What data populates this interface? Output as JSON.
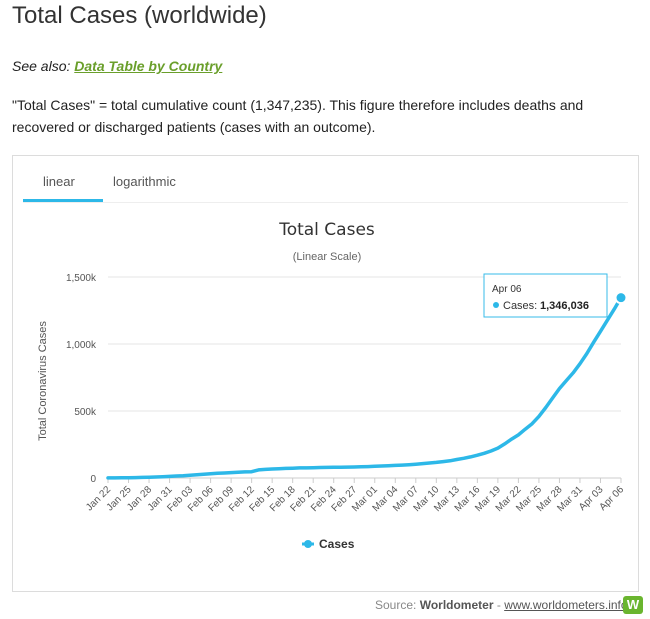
{
  "page_title": "Total Cases (worldwide)",
  "see_also_label": "See also:",
  "see_also_link": "Data Table by Country",
  "description": "\"Total Cases\" = total cumulative count (1,347,235). This figure therefore includes deaths and recovered or discharged patients (cases with an outcome).",
  "tabs": [
    {
      "label": "linear",
      "active": true
    },
    {
      "label": "logarithmic",
      "active": false
    }
  ],
  "tooltip": {
    "date": "Apr 06",
    "series_label": "Cases:",
    "value": "1,346,036"
  },
  "footer": {
    "source_label": "Source:",
    "source_name": "Worldometer",
    "separator": "-",
    "url": "www.worldometers.info",
    "logo_glyph": "W"
  },
  "colors": {
    "series": "#2db8e8",
    "link": "#6a9f2b",
    "logo": "#6ab52f"
  },
  "chart_data": {
    "type": "line",
    "title": "Total Cases",
    "subtitle": "(Linear Scale)",
    "ylabel": "Total Coronavirus Cases",
    "xlabel": "",
    "ylim": [
      0,
      1500000
    ],
    "y_ticks": [
      0,
      500000,
      1000000,
      1500000
    ],
    "y_tick_labels": [
      "0",
      "500k",
      "1,000k",
      "1,500k"
    ],
    "x_tick_labels": [
      "Jan 22",
      "Jan 25",
      "Jan 28",
      "Jan 31",
      "Feb 03",
      "Feb 06",
      "Feb 09",
      "Feb 12",
      "Feb 15",
      "Feb 18",
      "Feb 21",
      "Feb 24",
      "Feb 27",
      "Mar 01",
      "Mar 04",
      "Mar 07",
      "Mar 10",
      "Mar 13",
      "Mar 16",
      "Mar 19",
      "Mar 22",
      "Mar 25",
      "Mar 28",
      "Mar 31",
      "Apr 03",
      "Apr 06"
    ],
    "x": [
      "Jan 22",
      "Jan 23",
      "Jan 24",
      "Jan 25",
      "Jan 26",
      "Jan 27",
      "Jan 28",
      "Jan 29",
      "Jan 30",
      "Jan 31",
      "Feb 01",
      "Feb 02",
      "Feb 03",
      "Feb 04",
      "Feb 05",
      "Feb 06",
      "Feb 07",
      "Feb 08",
      "Feb 09",
      "Feb 10",
      "Feb 11",
      "Feb 12",
      "Feb 13",
      "Feb 14",
      "Feb 15",
      "Feb 16",
      "Feb 17",
      "Feb 18",
      "Feb 19",
      "Feb 20",
      "Feb 21",
      "Feb 22",
      "Feb 23",
      "Feb 24",
      "Feb 25",
      "Feb 26",
      "Feb 27",
      "Feb 28",
      "Feb 29",
      "Mar 01",
      "Mar 02",
      "Mar 03",
      "Mar 04",
      "Mar 05",
      "Mar 06",
      "Mar 07",
      "Mar 08",
      "Mar 09",
      "Mar 10",
      "Mar 11",
      "Mar 12",
      "Mar 13",
      "Mar 14",
      "Mar 15",
      "Mar 16",
      "Mar 17",
      "Mar 18",
      "Mar 19",
      "Mar 20",
      "Mar 21",
      "Mar 22",
      "Mar 23",
      "Mar 24",
      "Mar 25",
      "Mar 26",
      "Mar 27",
      "Mar 28",
      "Mar 29",
      "Mar 30",
      "Mar 31",
      "Apr 01",
      "Apr 02",
      "Apr 03",
      "Apr 04",
      "Apr 05",
      "Apr 06"
    ],
    "series": [
      {
        "name": "Cases",
        "values": [
          580,
          845,
          1320,
          2014,
          2798,
          4593,
          6065,
          7818,
          9826,
          11953,
          14557,
          17391,
          20630,
          24554,
          28276,
          31481,
          34886,
          37558,
          40554,
          43103,
          45171,
          46727,
          60363,
          64406,
          67100,
          69200,
          71300,
          73300,
          75200,
          75700,
          76800,
          78700,
          78900,
          79500,
          80200,
          81200,
          82400,
          83900,
          85400,
          87600,
          89400,
          91700,
          94000,
          96600,
          99300,
          103300,
          107700,
          111800,
          116300,
          122300,
          128200,
          137800,
          147000,
          157300,
          170200,
          184100,
          201700,
          222900,
          254300,
          290000,
          321600,
          364500,
          405000,
          460000,
          526000,
          597000,
          667000,
          727000,
          784000,
          853000,
          928000,
          1013000,
          1095000,
          1177000,
          1260000,
          1346036
        ]
      }
    ],
    "legend_position": "bottom",
    "grid": true
  }
}
